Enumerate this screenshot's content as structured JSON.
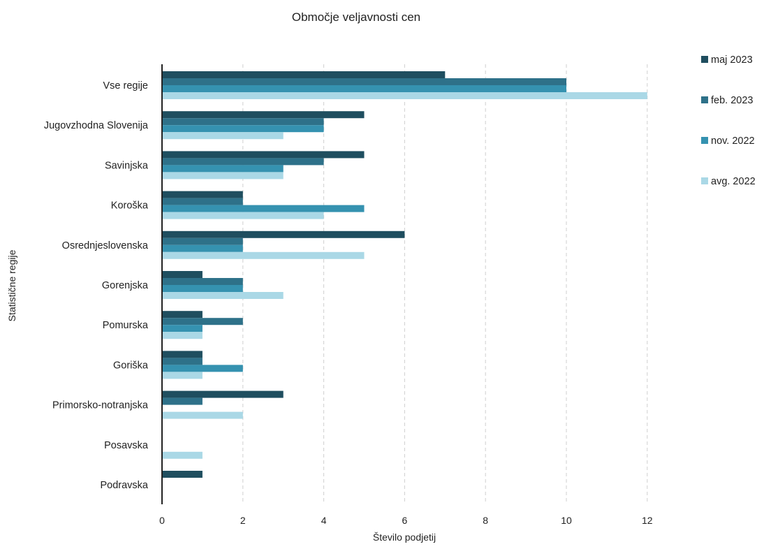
{
  "chart_data": {
    "type": "bar",
    "orientation": "horizontal",
    "title": "Območje veljavnosti cen",
    "xlabel": "Število podjetij",
    "ylabel": "Statistične regije",
    "xlim": [
      0,
      12
    ],
    "xticks": [
      0,
      2,
      4,
      6,
      8,
      10,
      12
    ],
    "grid": "vertical dashed",
    "legend_position": "right",
    "categories": [
      "Vse regije",
      "Jugovzhodna Slovenija",
      "Savinjska",
      "Koroška",
      "Osrednjeslovenska",
      "Gorenjska",
      "Pomurska",
      "Goriška",
      "Primorsko-notranjska",
      "Posavska",
      "Podravska"
    ],
    "series": [
      {
        "name": "maj 2023",
        "color": "#1f4e5f",
        "values": [
          7,
          5,
          5,
          2,
          6,
          1,
          1,
          1,
          3,
          0,
          1
        ]
      },
      {
        "name": "feb. 2023",
        "color": "#2e7189",
        "values": [
          10,
          4,
          4,
          2,
          2,
          2,
          2,
          1,
          1,
          0,
          0
        ]
      },
      {
        "name": "nov. 2022",
        "color": "#3592b0",
        "values": [
          10,
          4,
          3,
          5,
          2,
          2,
          1,
          2,
          0,
          0,
          0
        ]
      },
      {
        "name": "avg. 2022",
        "color": "#aad8e6",
        "values": [
          12,
          3,
          3,
          4,
          5,
          3,
          1,
          1,
          2,
          1,
          0
        ]
      }
    ]
  }
}
